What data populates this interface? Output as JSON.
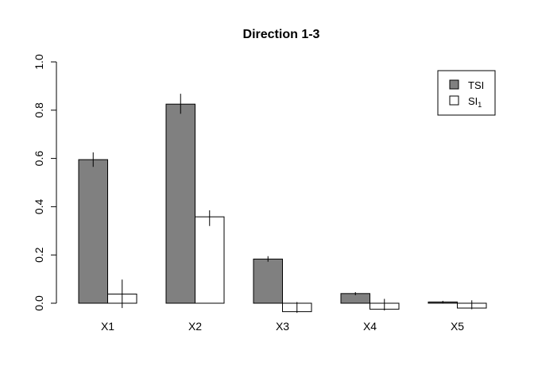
{
  "chart_data": {
    "type": "bar",
    "title": "Direction 1-3",
    "xlabel": "",
    "ylabel": "",
    "categories": [
      "X1",
      "X2",
      "X3",
      "X4",
      "X5"
    ],
    "ylim": [
      0,
      1
    ],
    "yticks": [
      "0.0",
      "0.2",
      "0.4",
      "0.6",
      "0.8",
      "1.0"
    ],
    "legend_position": "top-right",
    "grid": false,
    "series": [
      {
        "name": "TSI",
        "color": "#808080",
        "values": [
          0.595,
          0.825,
          0.183,
          0.04,
          0.005
        ],
        "err_low": [
          0.565,
          0.785,
          0.172,
          0.033,
          0.0
        ],
        "err_high": [
          0.625,
          0.868,
          0.195,
          0.046,
          0.01
        ]
      },
      {
        "name": "SI",
        "name_sub": "1",
        "color": "#ffffff",
        "values": [
          0.038,
          0.358,
          -0.035,
          -0.025,
          -0.02
        ],
        "err_low": [
          -0.02,
          0.32,
          -0.04,
          -0.03,
          -0.025
        ],
        "err_high": [
          0.098,
          0.385,
          0.005,
          0.018,
          0.012
        ]
      }
    ]
  }
}
